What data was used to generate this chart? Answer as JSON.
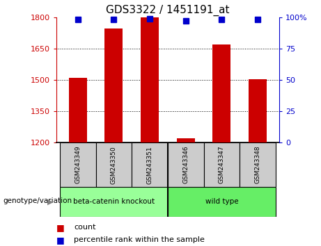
{
  "title": "GDS3322 / 1451191_at",
  "samples": [
    "GSM243349",
    "GSM243350",
    "GSM243351",
    "GSM243346",
    "GSM243347",
    "GSM243348"
  ],
  "counts": [
    1510,
    1745,
    1800,
    1220,
    1670,
    1505
  ],
  "percentile_ranks": [
    98,
    98,
    99,
    97,
    98,
    98
  ],
  "ylim_left": [
    1200,
    1800
  ],
  "ylim_right": [
    0,
    100
  ],
  "yticks_left": [
    1200,
    1350,
    1500,
    1650,
    1800
  ],
  "yticks_right": [
    0,
    25,
    50,
    75,
    100
  ],
  "bar_color": "#cc0000",
  "dot_color": "#0000cc",
  "groups": [
    {
      "label": "beta-catenin knockout",
      "indices": [
        0,
        1,
        2
      ],
      "color": "#99ff99"
    },
    {
      "label": "wild type",
      "indices": [
        3,
        4,
        5
      ],
      "color": "#66ee66"
    }
  ],
  "genotype_label": "genotype/variation",
  "legend_count_label": "count",
  "legend_percentile_label": "percentile rank within the sample",
  "bar_width": 0.5,
  "dot_size": 55,
  "background_color": "#ffffff",
  "left_ylabel_color": "#cc0000",
  "right_ylabel_color": "#0000cc",
  "sample_bg_color": "#cccccc",
  "n_samples": 6,
  "group_sep_after": 2
}
